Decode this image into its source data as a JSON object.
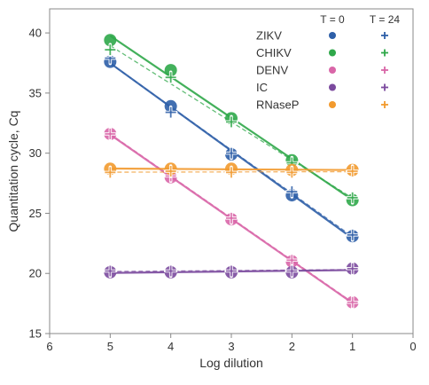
{
  "chart_data": {
    "type": "scatter",
    "xlabel": "Log dilution",
    "ylabel": "Quantitation cycle, Cq",
    "xlim": [
      6,
      0
    ],
    "ylim": [
      15,
      42
    ],
    "x_reversed": true,
    "xticks": [
      6,
      5,
      4,
      3,
      2,
      1,
      0
    ],
    "yticks": [
      15,
      20,
      25,
      30,
      35,
      40
    ],
    "grid": false,
    "legend_position": "top-right",
    "legend_headers": [
      "T = 0",
      "T = 24"
    ],
    "x": [
      5,
      4,
      3,
      2,
      1
    ],
    "series": [
      {
        "name": "ZIKV",
        "color": "#2e5fa8",
        "t0": [
          37.6,
          33.9,
          29.9,
          26.5,
          23.1
        ],
        "t24": [
          37.9,
          33.4,
          30.0,
          26.8,
          23.2
        ]
      },
      {
        "name": "CHIKV",
        "color": "#2fa84a",
        "t0": [
          39.4,
          36.9,
          32.9,
          29.4,
          26.1
        ],
        "t24": [
          38.6,
          36.3,
          32.6,
          29.2,
          26.3
        ]
      },
      {
        "name": "DENV",
        "color": "#d966a8",
        "t0": [
          31.6,
          28.0,
          24.5,
          21.0,
          17.6
        ],
        "t24": [
          31.6,
          28.1,
          24.6,
          21.1,
          17.6
        ]
      },
      {
        "name": "IC",
        "color": "#7b4a9e",
        "t0": [
          20.1,
          20.1,
          20.1,
          20.1,
          20.4
        ],
        "t24": [
          20.2,
          20.2,
          20.2,
          20.2,
          20.4
        ]
      },
      {
        "name": "RNaseP",
        "color": "#f29a2e",
        "t0": [
          28.7,
          28.7,
          28.7,
          28.6,
          28.6
        ],
        "t24": [
          28.4,
          28.5,
          28.4,
          28.4,
          28.5
        ]
      }
    ]
  }
}
